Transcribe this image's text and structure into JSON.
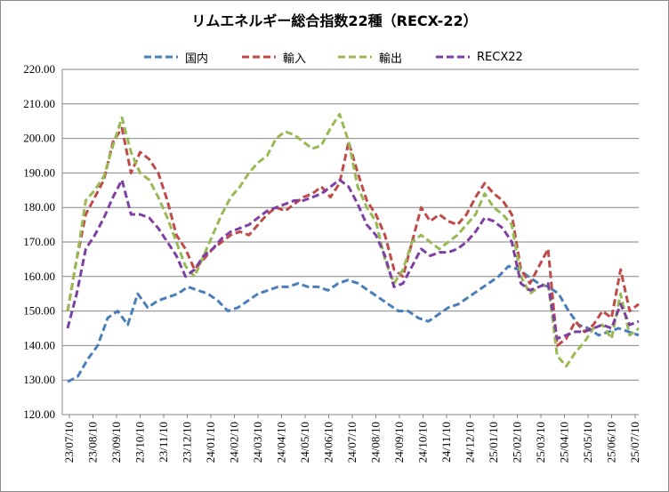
{
  "chart_data": {
    "type": "line",
    "title": "リムエネルギー総合指数22種（RECX-22）",
    "xlabel": "",
    "ylabel": "",
    "ylim": [
      120,
      220
    ],
    "y_ticks": [
      "120.00",
      "130.00",
      "140.00",
      "150.00",
      "160.00",
      "170.00",
      "180.00",
      "190.00",
      "200.00",
      "210.00",
      "220.00"
    ],
    "x_ticks": [
      "23/07/10",
      "23/08/10",
      "23/09/10",
      "23/10/10",
      "23/11/10",
      "23/12/10",
      "24/01/10",
      "24/02/10",
      "24/03/10",
      "24/04/10",
      "24/05/10",
      "24/06/10",
      "24/07/10",
      "24/08/10",
      "24/09/10",
      "24/10/10",
      "24/11/10",
      "24/12/10",
      "25/01/10",
      "25/02/10",
      "25/03/10",
      "25/04/10",
      "25/05/10",
      "25/06/10",
      "25/07/10"
    ],
    "legend_position": "top",
    "grid": "horizontal",
    "series": [
      {
        "name": "国内",
        "color": "#4a7ebb",
        "values": [
          129.5,
          131,
          136,
          140,
          148,
          150,
          146,
          155,
          151,
          153,
          154,
          155,
          157,
          156,
          155,
          153,
          150,
          151,
          153,
          155,
          156,
          157,
          157,
          158,
          157,
          157,
          156,
          158,
          159,
          158,
          156,
          154,
          152,
          150,
          150,
          148,
          147,
          149,
          151,
          152,
          154,
          156,
          158,
          160,
          163,
          162,
          160,
          158,
          157,
          155,
          150,
          146,
          145,
          143,
          144,
          145,
          144,
          143
        ]
      },
      {
        "name": "輸入",
        "color": "#be4b48",
        "values": [
          150,
          165,
          178,
          183,
          188,
          199,
          203,
          190,
          196,
          194,
          190,
          182,
          172,
          168,
          162,
          165,
          168,
          170,
          172,
          173,
          172,
          175,
          178,
          180,
          179,
          181,
          183,
          184,
          186,
          183,
          187,
          199,
          190,
          182,
          178,
          172,
          162,
          160,
          170,
          180,
          176,
          178,
          176,
          175,
          178,
          183,
          187,
          184,
          182,
          178,
          162,
          158,
          163,
          168,
          140,
          142,
          147,
          144,
          146,
          150,
          148,
          162,
          150,
          152
        ]
      },
      {
        "name": "輸出",
        "color": "#98b954",
        "values": [
          150,
          165,
          182,
          185,
          189,
          198,
          206,
          196,
          190,
          188,
          183,
          177,
          170,
          163,
          160,
          166,
          172,
          178,
          183,
          186,
          190,
          193,
          195,
          200,
          202,
          201,
          199,
          197,
          198,
          203,
          207,
          199,
          186,
          180,
          176,
          165,
          158,
          162,
          170,
          172,
          170,
          168,
          170,
          172,
          175,
          178,
          184,
          180,
          178,
          175,
          160,
          155,
          157,
          158,
          137,
          134,
          138,
          141,
          145,
          146,
          142,
          155,
          143,
          145
        ]
      },
      {
        "name": "RECX22",
        "color": "#7d3fa3",
        "values": [
          145,
          155,
          168,
          172,
          177,
          183,
          188,
          178,
          178,
          177,
          174,
          170,
          166,
          160,
          162,
          166,
          168,
          171,
          173,
          174,
          175,
          177,
          179,
          180,
          181,
          182,
          182,
          183,
          184,
          186,
          188,
          186,
          181,
          175,
          172,
          166,
          157,
          158,
          163,
          168,
          166,
          167,
          167,
          168,
          170,
          173,
          177,
          176,
          174,
          170,
          158,
          156,
          157,
          158,
          142,
          143,
          144,
          144,
          145,
          146,
          145,
          152,
          146,
          147
        ]
      }
    ]
  }
}
